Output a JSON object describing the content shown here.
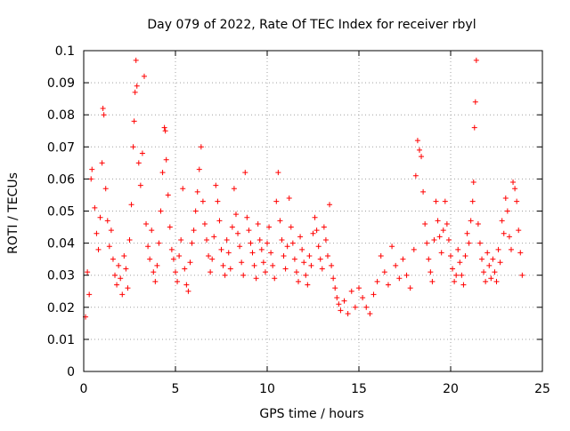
{
  "chart_data": {
    "type": "scatter",
    "title": "Day 079 of 2022, Rate Of TEC Index for receiver rbyl",
    "xlabel": "GPS time / hours",
    "ylabel": "ROTI / TECUs",
    "xlim": [
      0,
      25
    ],
    "ylim": [
      0,
      0.1
    ],
    "x_ticks": [
      0,
      5,
      10,
      15,
      20,
      25
    ],
    "x_tick_labels": [
      "0",
      "5",
      "10",
      "15",
      "20",
      "25"
    ],
    "y_ticks": [
      0,
      0.01,
      0.02,
      0.03,
      0.04,
      0.05,
      0.06,
      0.07,
      0.08,
      0.09,
      0.1
    ],
    "y_tick_labels": [
      "0",
      "0.01",
      "0.02",
      "0.03",
      "0.04",
      "0.05",
      "0.06",
      "0.07",
      "0.08",
      "0.09",
      "0.1"
    ],
    "grid": true,
    "marker": "+",
    "marker_color": "#ff0000",
    "series": [
      {
        "name": "ROTI",
        "points": [
          [
            0.1,
            0.017
          ],
          [
            0.2,
            0.031
          ],
          [
            0.3,
            0.024
          ],
          [
            0.4,
            0.06
          ],
          [
            0.45,
            0.063
          ],
          [
            0.6,
            0.051
          ],
          [
            0.7,
            0.043
          ],
          [
            0.8,
            0.038
          ],
          [
            0.9,
            0.048
          ],
          [
            1.0,
            0.065
          ],
          [
            1.05,
            0.082
          ],
          [
            1.1,
            0.08
          ],
          [
            1.2,
            0.057
          ],
          [
            1.3,
            0.047
          ],
          [
            1.4,
            0.039
          ],
          [
            1.5,
            0.044
          ],
          [
            1.6,
            0.035
          ],
          [
            1.7,
            0.03
          ],
          [
            1.8,
            0.027
          ],
          [
            1.9,
            0.033
          ],
          [
            2.0,
            0.029
          ],
          [
            2.1,
            0.024
          ],
          [
            2.2,
            0.036
          ],
          [
            2.3,
            0.032
          ],
          [
            2.4,
            0.026
          ],
          [
            2.5,
            0.041
          ],
          [
            2.6,
            0.052
          ],
          [
            2.7,
            0.07
          ],
          [
            2.75,
            0.078
          ],
          [
            2.8,
            0.087
          ],
          [
            2.85,
            0.097
          ],
          [
            2.9,
            0.089
          ],
          [
            3.0,
            0.065
          ],
          [
            3.1,
            0.058
          ],
          [
            3.2,
            0.068
          ],
          [
            3.3,
            0.092
          ],
          [
            3.4,
            0.046
          ],
          [
            3.5,
            0.039
          ],
          [
            3.6,
            0.035
          ],
          [
            3.7,
            0.044
          ],
          [
            3.8,
            0.031
          ],
          [
            3.9,
            0.028
          ],
          [
            4.0,
            0.033
          ],
          [
            4.1,
            0.04
          ],
          [
            4.2,
            0.05
          ],
          [
            4.3,
            0.062
          ],
          [
            4.4,
            0.076
          ],
          [
            4.45,
            0.075
          ],
          [
            4.5,
            0.066
          ],
          [
            4.6,
            0.055
          ],
          [
            4.7,
            0.045
          ],
          [
            4.8,
            0.038
          ],
          [
            4.9,
            0.035
          ],
          [
            5.0,
            0.031
          ],
          [
            5.1,
            0.028
          ],
          [
            5.2,
            0.036
          ],
          [
            5.3,
            0.041
          ],
          [
            5.4,
            0.057
          ],
          [
            5.5,
            0.032
          ],
          [
            5.6,
            0.027
          ],
          [
            5.7,
            0.025
          ],
          [
            5.8,
            0.034
          ],
          [
            5.9,
            0.04
          ],
          [
            6.0,
            0.044
          ],
          [
            6.1,
            0.05
          ],
          [
            6.2,
            0.056
          ],
          [
            6.3,
            0.063
          ],
          [
            6.4,
            0.07
          ],
          [
            6.5,
            0.053
          ],
          [
            6.6,
            0.046
          ],
          [
            6.7,
            0.041
          ],
          [
            6.8,
            0.036
          ],
          [
            6.9,
            0.031
          ],
          [
            7.0,
            0.035
          ],
          [
            7.1,
            0.042
          ],
          [
            7.2,
            0.058
          ],
          [
            7.3,
            0.053
          ],
          [
            7.4,
            0.047
          ],
          [
            7.5,
            0.038
          ],
          [
            7.6,
            0.033
          ],
          [
            7.7,
            0.03
          ],
          [
            7.8,
            0.041
          ],
          [
            7.9,
            0.037
          ],
          [
            8.0,
            0.032
          ],
          [
            8.1,
            0.045
          ],
          [
            8.2,
            0.057
          ],
          [
            8.3,
            0.049
          ],
          [
            8.4,
            0.043
          ],
          [
            8.5,
            0.039
          ],
          [
            8.6,
            0.034
          ],
          [
            8.7,
            0.03
          ],
          [
            8.8,
            0.062
          ],
          [
            8.9,
            0.048
          ],
          [
            9.0,
            0.044
          ],
          [
            9.1,
            0.04
          ],
          [
            9.2,
            0.037
          ],
          [
            9.3,
            0.033
          ],
          [
            9.4,
            0.029
          ],
          [
            9.5,
            0.046
          ],
          [
            9.6,
            0.041
          ],
          [
            9.7,
            0.038
          ],
          [
            9.8,
            0.034
          ],
          [
            9.9,
            0.031
          ],
          [
            10.0,
            0.04
          ],
          [
            10.1,
            0.045
          ],
          [
            10.2,
            0.037
          ],
          [
            10.3,
            0.033
          ],
          [
            10.4,
            0.029
          ],
          [
            10.5,
            0.053
          ],
          [
            10.6,
            0.062
          ],
          [
            10.7,
            0.047
          ],
          [
            10.8,
            0.041
          ],
          [
            10.9,
            0.036
          ],
          [
            11.0,
            0.032
          ],
          [
            11.1,
            0.039
          ],
          [
            11.2,
            0.054
          ],
          [
            11.3,
            0.045
          ],
          [
            11.4,
            0.04
          ],
          [
            11.5,
            0.035
          ],
          [
            11.6,
            0.031
          ],
          [
            11.7,
            0.028
          ],
          [
            11.8,
            0.042
          ],
          [
            11.9,
            0.038
          ],
          [
            12.0,
            0.034
          ],
          [
            12.1,
            0.03
          ],
          [
            12.2,
            0.027
          ],
          [
            12.3,
            0.036
          ],
          [
            12.4,
            0.033
          ],
          [
            12.5,
            0.043
          ],
          [
            12.6,
            0.048
          ],
          [
            12.7,
            0.044
          ],
          [
            12.8,
            0.039
          ],
          [
            12.9,
            0.035
          ],
          [
            13.0,
            0.032
          ],
          [
            13.1,
            0.045
          ],
          [
            13.2,
            0.041
          ],
          [
            13.3,
            0.036
          ],
          [
            13.4,
            0.052
          ],
          [
            13.5,
            0.033
          ],
          [
            13.6,
            0.029
          ],
          [
            13.7,
            0.026
          ],
          [
            13.8,
            0.023
          ],
          [
            13.9,
            0.021
          ],
          [
            14.0,
            0.019
          ],
          [
            14.2,
            0.022
          ],
          [
            14.4,
            0.018
          ],
          [
            14.6,
            0.025
          ],
          [
            14.8,
            0.02
          ],
          [
            15.0,
            0.026
          ],
          [
            15.2,
            0.023
          ],
          [
            15.4,
            0.02
          ],
          [
            15.6,
            0.018
          ],
          [
            15.8,
            0.024
          ],
          [
            16.0,
            0.028
          ],
          [
            16.2,
            0.036
          ],
          [
            16.4,
            0.031
          ],
          [
            16.6,
            0.027
          ],
          [
            16.8,
            0.039
          ],
          [
            17.0,
            0.033
          ],
          [
            17.2,
            0.029
          ],
          [
            17.4,
            0.035
          ],
          [
            17.6,
            0.03
          ],
          [
            17.8,
            0.026
          ],
          [
            18.0,
            0.038
          ],
          [
            18.1,
            0.061
          ],
          [
            18.2,
            0.072
          ],
          [
            18.3,
            0.069
          ],
          [
            18.4,
            0.067
          ],
          [
            18.5,
            0.056
          ],
          [
            18.6,
            0.046
          ],
          [
            18.7,
            0.04
          ],
          [
            18.8,
            0.035
          ],
          [
            18.9,
            0.031
          ],
          [
            19.0,
            0.028
          ],
          [
            19.1,
            0.041
          ],
          [
            19.2,
            0.053
          ],
          [
            19.3,
            0.047
          ],
          [
            19.4,
            0.042
          ],
          [
            19.5,
            0.037
          ],
          [
            19.6,
            0.044
          ],
          [
            19.7,
            0.053
          ],
          [
            19.8,
            0.046
          ],
          [
            19.9,
            0.041
          ],
          [
            20.0,
            0.036
          ],
          [
            20.1,
            0.032
          ],
          [
            20.2,
            0.028
          ],
          [
            20.3,
            0.03
          ],
          [
            20.4,
            0.038
          ],
          [
            20.5,
            0.034
          ],
          [
            20.6,
            0.03
          ],
          [
            20.7,
            0.027
          ],
          [
            20.8,
            0.036
          ],
          [
            20.9,
            0.043
          ],
          [
            21.0,
            0.04
          ],
          [
            21.1,
            0.047
          ],
          [
            21.2,
            0.053
          ],
          [
            21.25,
            0.059
          ],
          [
            21.3,
            0.076
          ],
          [
            21.35,
            0.084
          ],
          [
            21.4,
            0.097
          ],
          [
            21.5,
            0.046
          ],
          [
            21.6,
            0.04
          ],
          [
            21.7,
            0.035
          ],
          [
            21.8,
            0.031
          ],
          [
            21.9,
            0.028
          ],
          [
            22.0,
            0.037
          ],
          [
            22.1,
            0.033
          ],
          [
            22.2,
            0.029
          ],
          [
            22.3,
            0.035
          ],
          [
            22.4,
            0.031
          ],
          [
            22.5,
            0.028
          ],
          [
            22.6,
            0.038
          ],
          [
            22.7,
            0.034
          ],
          [
            22.8,
            0.047
          ],
          [
            22.9,
            0.043
          ],
          [
            23.0,
            0.054
          ],
          [
            23.1,
            0.05
          ],
          [
            23.2,
            0.042
          ],
          [
            23.3,
            0.038
          ],
          [
            23.4,
            0.059
          ],
          [
            23.5,
            0.057
          ],
          [
            23.6,
            0.053
          ],
          [
            23.7,
            0.044
          ],
          [
            23.8,
            0.037
          ],
          [
            23.9,
            0.03
          ]
        ]
      }
    ]
  }
}
